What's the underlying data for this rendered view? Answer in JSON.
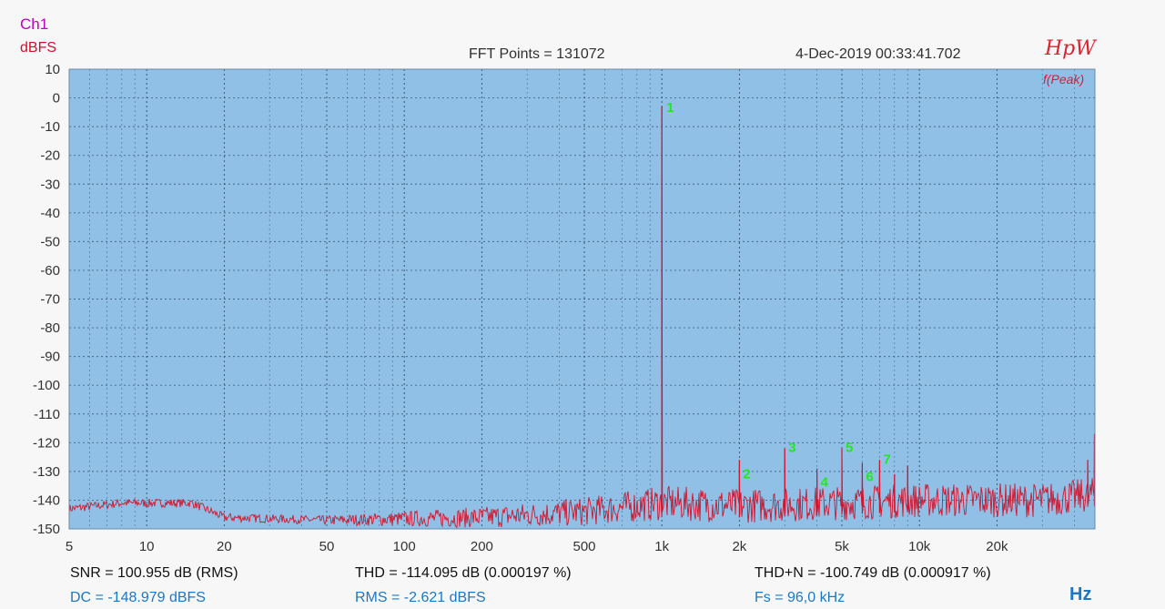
{
  "header": {
    "channel": "Ch1",
    "y_unit": "dBFS",
    "fft_points": "FFT Points = 131072",
    "timestamp": "4-Dec-2019 00:33:41.702",
    "brand": "HpW",
    "peak_mode": "f(Peak)"
  },
  "measurements": {
    "snr": "SNR = 100.955 dB (RMS)",
    "thd": "THD = -114.095 dB (0.000197 %)",
    "thdn": "THD+N = -100.749 dB (0.000917 %)",
    "dc": "DC = -148.979 dBFS",
    "rms": "RMS = -2.621 dBFS",
    "fs": "Fs = 96,0 kHz"
  },
  "x_unit": "Hz",
  "colors": {
    "plot_background": "#90c0e6",
    "grid": "#2a4a6a",
    "trace": "#d4142c",
    "peak_labels": "#22e81e"
  },
  "chart_data": {
    "type": "line",
    "x_scale": "log",
    "xlim": [
      5,
      48000
    ],
    "ylim": [
      -150,
      10
    ],
    "grid": true,
    "y_ticks": [
      10,
      0,
      -10,
      -20,
      -30,
      -40,
      -50,
      -60,
      -70,
      -80,
      -90,
      -100,
      -110,
      -120,
      -130,
      -140,
      -150
    ],
    "x_ticks": [
      {
        "value": 5,
        "label": "5"
      },
      {
        "value": 10,
        "label": "10"
      },
      {
        "value": 20,
        "label": "20"
      },
      {
        "value": 50,
        "label": "50"
      },
      {
        "value": 100,
        "label": "100"
      },
      {
        "value": 200,
        "label": "200"
      },
      {
        "value": 500,
        "label": "500"
      },
      {
        "value": 1000,
        "label": "1k"
      },
      {
        "value": 2000,
        "label": "2k"
      },
      {
        "value": 5000,
        "label": "5k"
      },
      {
        "value": 10000,
        "label": "10k"
      },
      {
        "value": 20000,
        "label": "20k"
      }
    ],
    "peaks": [
      {
        "label": "1",
        "freq": 1000,
        "level": -3
      },
      {
        "label": "2",
        "freq": 2000,
        "level": -126
      },
      {
        "label": "3",
        "freq": 3000,
        "level": -122
      },
      {
        "label": "4",
        "freq": 4000,
        "level": -129
      },
      {
        "label": "5",
        "freq": 5000,
        "level": -122
      },
      {
        "label": "6",
        "freq": 6000,
        "level": -127
      },
      {
        "label": "7",
        "freq": 7000,
        "level": -126
      }
    ],
    "spurs": [
      {
        "freq": 8000,
        "level": -131
      },
      {
        "freq": 9000,
        "level": -128
      },
      {
        "freq": 45000,
        "level": -126
      },
      {
        "freq": 47800,
        "level": -117
      }
    ],
    "noise_floor": [
      {
        "freq": 5,
        "level": -143
      },
      {
        "freq": 8,
        "level": -141
      },
      {
        "freq": 15,
        "level": -141
      },
      {
        "freq": 20,
        "level": -146
      },
      {
        "freq": 50,
        "level": -147
      },
      {
        "freq": 200,
        "level": -146
      },
      {
        "freq": 500,
        "level": -144
      },
      {
        "freq": 1000,
        "level": -141
      },
      {
        "freq": 2000,
        "level": -142
      },
      {
        "freq": 5000,
        "level": -141
      },
      {
        "freq": 10000,
        "level": -140
      },
      {
        "freq": 30000,
        "level": -140
      },
      {
        "freq": 48000,
        "level": -138
      }
    ]
  }
}
